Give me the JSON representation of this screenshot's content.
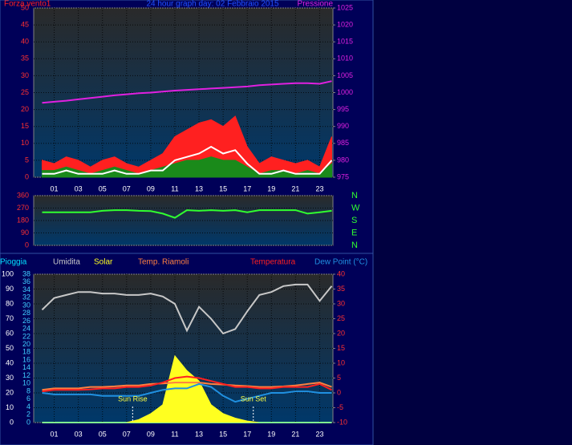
{
  "chart_data": [
    {
      "type": "line",
      "title": "24 hour graph day: 02 Febbraio 2015",
      "grid": true,
      "x": [
        0,
        1,
        2,
        3,
        4,
        5,
        6,
        7,
        8,
        9,
        10,
        11,
        12,
        13,
        14,
        15,
        16,
        17,
        18,
        19,
        20,
        21,
        22,
        23,
        24
      ],
      "xlim": [
        -0.7,
        24.1
      ],
      "xticks": [
        {
          "value": 1,
          "label": "01"
        },
        {
          "value": 3,
          "label": "03"
        },
        {
          "value": 5,
          "label": "05"
        },
        {
          "value": 7,
          "label": "07"
        },
        {
          "value": 9,
          "label": "09"
        },
        {
          "value": 11,
          "label": "11"
        },
        {
          "value": 13,
          "label": "13"
        },
        {
          "value": 15,
          "label": "15"
        },
        {
          "value": 17,
          "label": "17"
        },
        {
          "value": 19,
          "label": "19"
        },
        {
          "value": 21,
          "label": "21"
        },
        {
          "value": 23,
          "label": "23"
        }
      ],
      "ylim": [
        0,
        50
      ],
      "yticks": [
        0,
        5,
        10,
        15,
        20,
        25,
        30,
        35,
        40,
        45,
        50
      ],
      "y2lim": [
        975,
        1025
      ],
      "y2ticks": [
        975,
        980,
        985,
        990,
        995,
        1000,
        1005,
        1010,
        1015,
        1020,
        1025
      ],
      "series": [
        {
          "name": "Forza vento1",
          "color": "#ff2020",
          "fill": true,
          "values": [
            5,
            4,
            6,
            5,
            3,
            5,
            6,
            4,
            3,
            5,
            7,
            12,
            14,
            16,
            17,
            15,
            18,
            9,
            4,
            6,
            5,
            4,
            5,
            3,
            12
          ]
        },
        {
          "color": "#1a8a1a",
          "fill": true,
          "values": [
            2,
            2,
            3,
            2,
            1,
            2,
            3,
            2,
            1,
            2,
            3,
            4,
            5,
            5,
            6,
            5,
            5,
            3,
            1,
            2,
            2,
            1,
            2,
            1,
            4
          ]
        },
        {
          "color": "#ffffff",
          "fill": false,
          "values": [
            1,
            1,
            2,
            1,
            1,
            1,
            2,
            1,
            1,
            2,
            2,
            5,
            6,
            7,
            9,
            7,
            8,
            4,
            1,
            1,
            2,
            1,
            1,
            1,
            5
          ]
        },
        {
          "name": "Pressione",
          "color": "#e020e0",
          "fill": false,
          "axis": "y2",
          "values": [
            997,
            997.3,
            997.6,
            998,
            998.4,
            998.8,
            999.2,
            999.5,
            999.8,
            1000,
            1000.3,
            1000.6,
            1000.8,
            1001,
            1001.2,
            1001.4,
            1001.6,
            1001.8,
            1002.2,
            1002.4,
            1002.6,
            1002.8,
            1002.8,
            1002.6,
            1003.4
          ]
        }
      ]
    },
    {
      "type": "line",
      "grid": true,
      "x": [
        0,
        1,
        2,
        3,
        4,
        5,
        6,
        7,
        8,
        9,
        10,
        11,
        12,
        13,
        14,
        15,
        16,
        17,
        18,
        19,
        20,
        21,
        22,
        23,
        24
      ],
      "xlim": [
        -0.7,
        24.1
      ],
      "ylim": [
        0,
        360
      ],
      "yticks": [
        0,
        90,
        180,
        270,
        360
      ],
      "y2lim": [
        0,
        360
      ],
      "y2ticks": [
        {
          "value": 360,
          "label": "N"
        },
        {
          "value": 270,
          "label": "W"
        },
        {
          "value": 180,
          "label": "S"
        },
        {
          "value": 90,
          "label": "E"
        },
        {
          "value": 0,
          "label": "N"
        }
      ],
      "series": [
        {
          "color": "#30ff30",
          "fill": false,
          "values": [
            240,
            240,
            240,
            240,
            240,
            250,
            255,
            255,
            250,
            248,
            230,
            200,
            255,
            250,
            255,
            250,
            255,
            240,
            255,
            255,
            255,
            255,
            230,
            240,
            250
          ]
        }
      ]
    },
    {
      "type": "line",
      "grid": true,
      "x": [
        0,
        1,
        2,
        3,
        4,
        5,
        6,
        7,
        8,
        9,
        10,
        11,
        12,
        13,
        14,
        15,
        16,
        17,
        18,
        19,
        20,
        21,
        22,
        23,
        24
      ],
      "xlim": [
        -0.7,
        24.1
      ],
      "xticks": [
        {
          "value": 1,
          "label": "01"
        },
        {
          "value": 3,
          "label": "03"
        },
        {
          "value": 5,
          "label": "05"
        },
        {
          "value": 7,
          "label": "07"
        },
        {
          "value": 9,
          "label": "09"
        },
        {
          "value": 11,
          "label": "11"
        },
        {
          "value": 13,
          "label": "13"
        },
        {
          "value": 15,
          "label": "15"
        },
        {
          "value": 17,
          "label": "17"
        },
        {
          "value": 19,
          "label": "19"
        },
        {
          "value": 21,
          "label": "21"
        },
        {
          "value": 23,
          "label": "23"
        }
      ],
      "ylim": [
        0,
        100
      ],
      "yticks": [
        0,
        10,
        20,
        30,
        40,
        50,
        60,
        70,
        80,
        90,
        100
      ],
      "y3lim": [
        0,
        38
      ],
      "y3ticks": [
        0,
        2,
        4,
        6,
        8,
        10,
        12,
        14,
        16,
        18,
        20,
        22,
        24,
        26,
        28,
        30,
        32,
        34,
        36,
        38
      ],
      "y2lim": [
        -10,
        40
      ],
      "y2ticks": [
        -10,
        -5,
        0,
        5,
        10,
        15,
        20,
        25,
        30,
        35,
        40
      ],
      "annotations": [
        {
          "text": "Sun Rise",
          "x": 7.5
        },
        {
          "text": "Sun Set",
          "x": 17.5
        }
      ],
      "series": [
        {
          "name": "Pioggia",
          "color": "#00e0ff",
          "fill": false,
          "axis": "y3",
          "values": [
            0,
            0,
            0,
            0,
            0,
            0,
            0,
            0,
            0,
            0,
            0,
            0,
            0,
            0,
            0,
            0,
            0,
            0,
            0,
            0,
            0,
            0,
            0,
            0,
            0
          ]
        },
        {
          "name": "Umidita",
          "color": "#c8c8c8",
          "fill": false,
          "values": [
            76,
            84,
            86,
            88,
            88,
            87,
            87,
            86,
            86,
            87,
            85,
            80,
            62,
            78,
            70,
            60,
            63,
            75,
            86,
            88,
            92,
            93,
            93,
            82,
            92
          ]
        },
        {
          "name": "Solar",
          "color": "#ffff20",
          "fill": true,
          "values": [
            0,
            0,
            0,
            0,
            0,
            0,
            0,
            0,
            2,
            6,
            12,
            45,
            35,
            28,
            12,
            6,
            3,
            1,
            0,
            0,
            0,
            0,
            0,
            0,
            0
          ]
        },
        {
          "name": "Temp. Riamoli",
          "color": "#ff8040",
          "fill": false,
          "axis": "y2",
          "values": [
            1,
            1.5,
            1.5,
            1.5,
            2,
            2,
            2.2,
            2.5,
            2.5,
            3,
            3.2,
            3.5,
            3.5,
            3.5,
            3,
            2.8,
            2.5,
            2.3,
            2,
            2,
            2.2,
            2.5,
            3,
            3.5,
            2
          ]
        },
        {
          "name": "Temperatura",
          "color": "#ff2020",
          "fill": false,
          "axis": "y2",
          "values": [
            0.5,
            1,
            1,
            1,
            1.2,
            1.5,
            1.5,
            2,
            2,
            2.5,
            3.5,
            5,
            5.5,
            5,
            4,
            3,
            2,
            2,
            1.5,
            1.5,
            2,
            2,
            2,
            3,
            1
          ]
        },
        {
          "name": "Dew Point (°C)",
          "color": "#2090e0",
          "fill": false,
          "axis": "y2",
          "values": [
            0,
            -0.5,
            -0.5,
            -0.5,
            -0.5,
            -1,
            -1,
            -1,
            -1,
            0,
            1,
            1.5,
            1.5,
            3,
            2,
            -1,
            -3,
            -2,
            -1,
            0,
            0,
            0.5,
            0.5,
            0,
            0
          ]
        }
      ]
    }
  ]
}
